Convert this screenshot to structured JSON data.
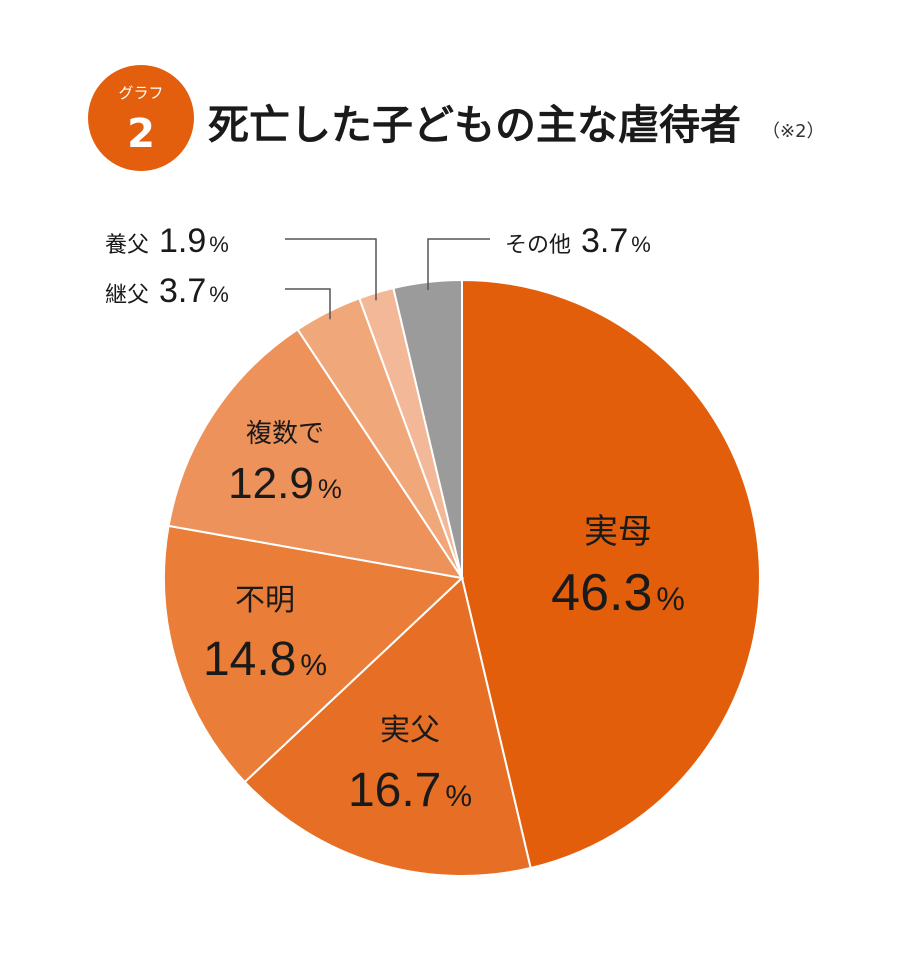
{
  "badge": {
    "label": "グラフ",
    "number": "2",
    "color": "#e35f0e"
  },
  "title": {
    "text": "死亡した子どもの主な虐待者",
    "note": "（※2）"
  },
  "chart_data": {
    "type": "pie",
    "title": "死亡した子どもの主な虐待者",
    "slices": [
      {
        "label": "実母",
        "value": 46.3,
        "display": "46.3",
        "unit": "%",
        "color": "#e35e0b"
      },
      {
        "label": "実父",
        "value": 16.7,
        "display": "16.7",
        "unit": "%",
        "color": "#e76f25"
      },
      {
        "label": "不明",
        "value": 14.8,
        "display": "14.8",
        "unit": "%",
        "color": "#ea7d37"
      },
      {
        "label": "複数で",
        "value": 12.9,
        "display": "12.9",
        "unit": "%",
        "color": "#ed925a"
      },
      {
        "label": "継父",
        "value": 3.7,
        "display": "3.7",
        "unit": "%",
        "color": "#f0a87b"
      },
      {
        "label": "養父",
        "value": 1.9,
        "display": "1.9",
        "unit": "%",
        "color": "#f2b898"
      },
      {
        "label": "その他",
        "value": 3.7,
        "display": "3.7",
        "unit": "%",
        "color": "#9b9b9b"
      }
    ]
  }
}
